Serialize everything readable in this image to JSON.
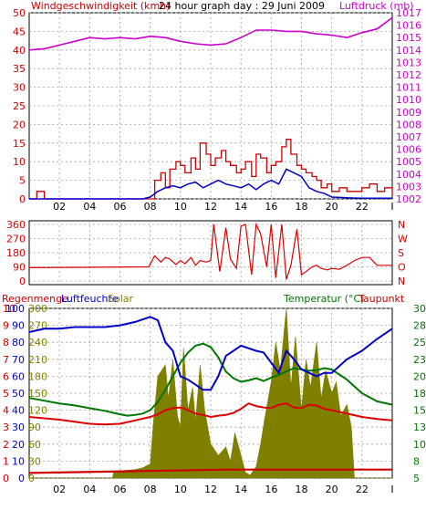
{
  "colors": {
    "wind": "#cc0000",
    "pressure": "#cc00cc",
    "windavg": "#0000cc",
    "direction": "#dd0000",
    "rain": "#cc0000",
    "humidity": "#0000cc",
    "solar": "#808000",
    "temperature": "#007700",
    "dewpoint": "#dd0000",
    "frame": "#000000",
    "grid": "#a0a0a0"
  },
  "chart_data": [
    {
      "type": "line",
      "title": "24 hour graph day : 29 Juni 2009",
      "left_label": "Windgeschwindigkeit (kmh)",
      "right_label": "Luftdruck (mb)",
      "x_ticks": [
        "02",
        "04",
        "06",
        "08",
        "10",
        "12",
        "14",
        "16",
        "18",
        "20",
        "22",
        "I"
      ],
      "y_left_ticks": [
        "0",
        "5",
        "10",
        "15",
        "20",
        "25",
        "30",
        "35",
        "40",
        "45",
        "50"
      ],
      "y_left_lim": [
        0,
        50
      ],
      "y_right_ticks": [
        "1002",
        "1003",
        "1004",
        "1005",
        "1006",
        "1007",
        "1008",
        "1009",
        "1010",
        "1011",
        "1012",
        "1013",
        "1014",
        "1015",
        "1016",
        "1017"
      ],
      "y_right_lim": [
        1002,
        1017
      ],
      "series": [
        {
          "name": "Luftdruck",
          "axis": "right",
          "x": [
            0,
            1,
            2,
            3,
            4,
            5,
            6,
            7,
            8,
            9,
            10,
            11,
            12,
            13,
            14,
            15,
            16,
            17,
            18,
            19,
            20,
            21,
            22,
            23,
            24
          ],
          "values": [
            1014.0,
            1014.1,
            1014.4,
            1014.7,
            1015.0,
            1014.9,
            1015.0,
            1014.9,
            1015.1,
            1015.0,
            1014.7,
            1014.5,
            1014.4,
            1014.5,
            1015.0,
            1015.6,
            1015.6,
            1015.5,
            1015.5,
            1015.3,
            1015.2,
            1015.0,
            1015.4,
            1015.7,
            1016.6
          ]
        },
        {
          "name": "Wind",
          "axis": "left",
          "x": [
            0,
            0.5,
            1,
            5,
            7.5,
            8,
            8.3,
            8.7,
            9,
            9.3,
            9.7,
            10,
            10.3,
            10.7,
            11,
            11.3,
            11.7,
            12,
            12.3,
            12.7,
            13,
            13.3,
            13.7,
            14,
            14.3,
            14.7,
            15,
            15.3,
            15.7,
            16,
            16.3,
            16.7,
            17,
            17.3,
            17.7,
            18,
            18.3,
            18.7,
            19,
            19.3,
            19.7,
            20,
            20.5,
            21,
            21.5,
            22,
            22.5,
            23,
            23.5,
            24
          ],
          "values": [
            0,
            2,
            0,
            0,
            0,
            0,
            5,
            7,
            3,
            8,
            10,
            9,
            7,
            11,
            8,
            15,
            12,
            9,
            11,
            13,
            10,
            9,
            7,
            8,
            10,
            6,
            12,
            11,
            7,
            9,
            10,
            14,
            16,
            12,
            9,
            8,
            7,
            6,
            5,
            3,
            4,
            2,
            3,
            2,
            2,
            3,
            4,
            2,
            3,
            1
          ]
        },
        {
          "name": "Wind Mittel",
          "axis": "left",
          "x": [
            0,
            5,
            7.5,
            8,
            8.5,
            9,
            9.5,
            10,
            10.5,
            11,
            11.5,
            12,
            12.5,
            13,
            13.5,
            14,
            14.5,
            15,
            15.5,
            16,
            16.5,
            17,
            17.5,
            18,
            18.5,
            19,
            19.5,
            20,
            21,
            22,
            23,
            24
          ],
          "values": [
            0,
            0,
            0,
            0.5,
            2,
            3,
            3.5,
            3,
            4,
            4.5,
            3,
            4,
            5,
            4,
            3.5,
            3,
            4,
            2.5,
            4,
            5,
            4,
            8,
            7,
            6,
            3,
            2,
            1.5,
            0.5,
            0.3,
            0.2,
            0.2,
            0.2
          ]
        }
      ]
    },
    {
      "type": "line",
      "title": "",
      "y_left_ticks": [
        "360",
        "270",
        "180",
        "90",
        "0"
      ],
      "y_left_lim": [
        0,
        360
      ],
      "y_right_ticks": [
        "N",
        "W",
        "S",
        "O",
        "N"
      ],
      "series": [
        {
          "name": "Windrichtung",
          "x": [
            0,
            7.9,
            8.3,
            8.7,
            9,
            9.3,
            9.7,
            10,
            10.3,
            10.7,
            11,
            11.3,
            11.7,
            12,
            12.2,
            12.6,
            13,
            13.3,
            13.7,
            14,
            14.3,
            14.7,
            15,
            15.3,
            15.7,
            16,
            16.3,
            16.7,
            17,
            17.3,
            17.7,
            18,
            18.3,
            18.7,
            19,
            19.3,
            19.7,
            20,
            20.5,
            21,
            21.5,
            22,
            22.5,
            23,
            24
          ],
          "values": [
            85,
            90,
            160,
            120,
            150,
            140,
            105,
            130,
            110,
            150,
            100,
            130,
            120,
            130,
            360,
            60,
            340,
            140,
            80,
            350,
            360,
            40,
            360,
            300,
            90,
            360,
            20,
            360,
            10,
            100,
            330,
            40,
            60,
            90,
            100,
            80,
            70,
            80,
            75,
            100,
            130,
            150,
            150,
            100,
            100
          ]
        }
      ]
    },
    {
      "type": "line",
      "left_label_1": "Regenmenge",
      "left_label_2": "Luftfeuchte",
      "center_label": "Solar",
      "right_label_1": "Temperatur (°C)",
      "right_label_2": "Taupunkt",
      "y_rain_ticks": [
        "0",
        "1",
        "2",
        "3",
        "4",
        "5",
        "6",
        "7",
        "8",
        "9",
        "10"
      ],
      "y_humidity_ticks": [
        "0",
        "10",
        "20",
        "30",
        "40",
        "50",
        "60",
        "70",
        "80",
        "90",
        "100"
      ],
      "y_solar_ticks": [
        "0",
        "30",
        "60",
        "90",
        "120",
        "150",
        "180",
        "210",
        "240",
        "270",
        "300"
      ],
      "y_temp_ticks": [
        "5",
        "8",
        "10",
        "13",
        "15",
        "18",
        "20",
        "23",
        "25",
        "28",
        "30"
      ],
      "y_temp_lim": [
        5,
        30
      ],
      "series": [
        {
          "name": "Luftfeuchte",
          "axis": "humidity",
          "x": [
            0,
            1,
            2,
            3,
            4,
            5,
            6,
            7,
            8,
            8.5,
            9,
            9.5,
            10,
            10.5,
            11,
            11.5,
            12,
            12.5,
            13,
            14,
            15,
            15.5,
            16,
            16.5,
            17,
            17.5,
            18,
            18.5,
            19,
            19.5,
            20,
            21,
            22,
            23,
            24
          ],
          "values": [
            86,
            88,
            88,
            89,
            89,
            89,
            90,
            92,
            95,
            93,
            80,
            75,
            60,
            58,
            55,
            52,
            52,
            60,
            72,
            78,
            75,
            74,
            68,
            62,
            75,
            70,
            64,
            62,
            60,
            62,
            62,
            70,
            75,
            82,
            88
          ]
        },
        {
          "name": "Solar",
          "axis": "solar",
          "x": [
            0,
            5.5,
            5.6,
            7,
            7.5,
            8,
            8.2,
            8.5,
            9,
            9.2,
            9.5,
            9.8,
            10,
            10.2,
            10.5,
            10.8,
            11,
            11.3,
            11.6,
            12,
            12.5,
            13,
            13.3,
            13.6,
            14,
            14.3,
            14.6,
            15,
            15.3,
            15.6,
            16,
            16.3,
            16.6,
            17,
            17.3,
            17.6,
            18,
            18.3,
            18.6,
            19,
            19.3,
            19.6,
            20,
            20.3,
            20.6,
            21,
            21.3,
            21.5,
            24
          ],
          "values": [
            0,
            0,
            12,
            15,
            18,
            25,
            95,
            180,
            200,
            140,
            210,
            110,
            90,
            230,
            120,
            160,
            100,
            200,
            120,
            60,
            40,
            55,
            30,
            80,
            40,
            10,
            5,
            20,
            60,
            110,
            170,
            240,
            190,
            300,
            160,
            250,
            120,
            210,
            160,
            240,
            140,
            190,
            150,
            170,
            110,
            130,
            90,
            0,
            0
          ]
        },
        {
          "name": "Temperatur",
          "axis": "temp",
          "x": [
            0,
            1,
            2,
            3,
            4,
            5,
            6,
            6.5,
            7,
            7.5,
            8,
            8.5,
            9,
            9.5,
            10,
            10.5,
            11,
            11.5,
            12,
            12.5,
            13,
            13.5,
            14,
            14.5,
            15,
            15.5,
            16,
            16.5,
            17,
            17.5,
            18,
            18.5,
            19,
            19.5,
            20,
            21,
            22,
            23,
            24
          ],
          "values": [
            16.8,
            16.4,
            16.0,
            15.7,
            15.3,
            14.9,
            14.4,
            14.2,
            14.3,
            14.5,
            15.0,
            16.2,
            18.0,
            20.0,
            22.0,
            23.5,
            24.5,
            24.8,
            24.3,
            22.8,
            20.7,
            19.7,
            19.2,
            19.4,
            19.7,
            19.3,
            19.8,
            20.2,
            20.7,
            21.2,
            21.0,
            20.8,
            20.9,
            21.2,
            21.0,
            19.5,
            17.5,
            16.3,
            15.8
          ]
        },
        {
          "name": "Taupunkt",
          "axis": "temp",
          "x": [
            0,
            1,
            2,
            3,
            4,
            5,
            6,
            7,
            8,
            8.5,
            9,
            9.5,
            10,
            10.5,
            11,
            11.5,
            12,
            12.5,
            13,
            13.5,
            14,
            14.5,
            15,
            15.5,
            16,
            16.5,
            17,
            17.5,
            18,
            18.5,
            19,
            19.5,
            20,
            21,
            22,
            23,
            24
          ],
          "values": [
            14.0,
            13.8,
            13.6,
            13.3,
            13.0,
            12.9,
            13.0,
            13.5,
            14.0,
            14.4,
            15.0,
            15.3,
            15.4,
            15.0,
            14.5,
            14.3,
            14.0,
            14.2,
            14.3,
            14.6,
            15.2,
            16.0,
            15.6,
            15.4,
            15.3,
            15.8,
            16.0,
            15.4,
            15.3,
            15.8,
            15.7,
            15.2,
            15.0,
            14.5,
            14.0,
            13.7,
            13.5
          ]
        },
        {
          "name": "Regenmenge",
          "axis": "rain",
          "x": [
            0,
            13,
            24
          ],
          "values": [
            0.3,
            0.5,
            0.5
          ]
        }
      ]
    }
  ]
}
